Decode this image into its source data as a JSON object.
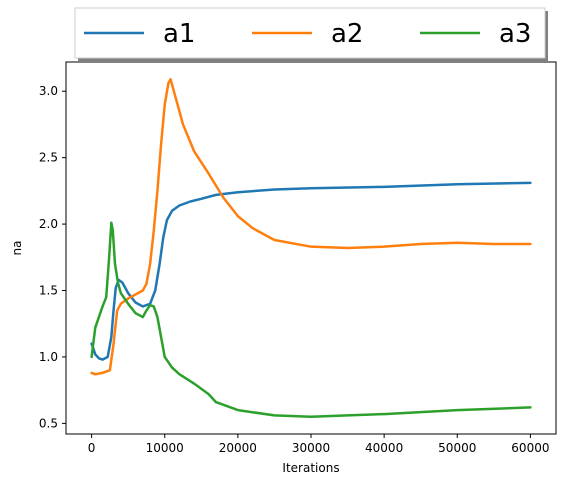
{
  "chart_data": {
    "type": "line",
    "title": "",
    "xlabel": "Iterations",
    "ylabel": "na",
    "xlim": [
      -3500,
      63500
    ],
    "ylim": [
      0.42,
      3.22
    ],
    "x_ticks": [
      0,
      10000,
      20000,
      30000,
      40000,
      50000,
      60000
    ],
    "y_ticks": [
      0.5,
      1.0,
      1.5,
      2.0,
      2.5,
      3.0
    ],
    "x_tick_labels": [
      "0",
      "10000",
      "20000",
      "30000",
      "40000",
      "50000",
      "60000"
    ],
    "y_tick_labels": [
      "0.5",
      "1.0",
      "1.5",
      "2.0",
      "2.5",
      "3.0"
    ],
    "grid": false,
    "legend_position": "top, above plot, 3 columns",
    "series": [
      {
        "name": "a1",
        "color": "#1f77b4",
        "x": [
          0,
          500,
          1000,
          1500,
          2200,
          2700,
          3000,
          3300,
          3700,
          4200,
          5000,
          6000,
          7000,
          8000,
          8700,
          9300,
          9800,
          10300,
          11000,
          12000,
          13500,
          15000,
          17000,
          20000,
          25000,
          30000,
          40000,
          50000,
          60000
        ],
        "y": [
          1.1,
          1.02,
          0.99,
          0.98,
          1.0,
          1.15,
          1.35,
          1.52,
          1.58,
          1.56,
          1.48,
          1.41,
          1.38,
          1.4,
          1.5,
          1.7,
          1.9,
          2.03,
          2.1,
          2.14,
          2.17,
          2.19,
          2.22,
          2.24,
          2.26,
          2.27,
          2.28,
          2.3,
          2.31
        ]
      },
      {
        "name": "a2",
        "color": "#ff7f0e",
        "x": [
          0,
          500,
          1500,
          2500,
          3000,
          3500,
          4000,
          5000,
          6000,
          7000,
          7500,
          8000,
          8500,
          9000,
          9500,
          10000,
          10500,
          10800,
          11500,
          12500,
          14000,
          16000,
          18000,
          20000,
          22000,
          25000,
          30000,
          35000,
          40000,
          45000,
          50000,
          55000,
          60000
        ],
        "y": [
          0.88,
          0.87,
          0.88,
          0.9,
          1.1,
          1.35,
          1.4,
          1.44,
          1.47,
          1.5,
          1.55,
          1.7,
          1.95,
          2.25,
          2.6,
          2.9,
          3.06,
          3.09,
          2.95,
          2.75,
          2.55,
          2.38,
          2.2,
          2.06,
          1.97,
          1.88,
          1.83,
          1.82,
          1.83,
          1.85,
          1.86,
          1.85,
          1.85
        ]
      },
      {
        "name": "a3",
        "color": "#2ca02c",
        "x": [
          0,
          500,
          1000,
          1500,
          2000,
          2400,
          2700,
          2900,
          3200,
          3600,
          4000,
          5000,
          6000,
          7000,
          7500,
          8000,
          8500,
          9000,
          9500,
          10000,
          11000,
          12000,
          14000,
          16000,
          17000,
          20000,
          25000,
          30000,
          35000,
          40000,
          50000,
          60000
        ],
        "y": [
          1.0,
          1.22,
          1.3,
          1.38,
          1.45,
          1.75,
          2.01,
          1.95,
          1.7,
          1.56,
          1.48,
          1.4,
          1.33,
          1.3,
          1.35,
          1.39,
          1.38,
          1.3,
          1.15,
          1.0,
          0.92,
          0.87,
          0.8,
          0.72,
          0.66,
          0.6,
          0.56,
          0.55,
          0.56,
          0.57,
          0.6,
          0.62
        ]
      }
    ]
  }
}
